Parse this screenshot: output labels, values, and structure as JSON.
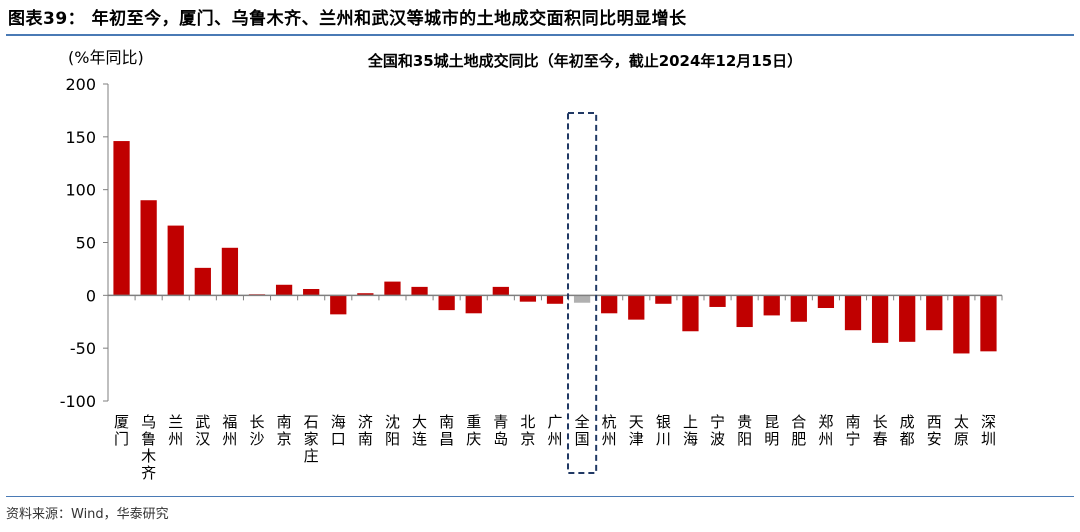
{
  "figure": {
    "title": "图表39：  年初至今，厦门、乌鲁木齐、兰州和武汉等城市的土地成交面积同比明显增长",
    "source": "资料来源：Wind，华泰研究"
  },
  "colors": {
    "bar": "#c00000",
    "highlight_bar": "#b0b0b0",
    "highlight_box": "#203864",
    "axis": "#7f7f7f",
    "rule": "#4a7ab5"
  },
  "chart_data": {
    "type": "bar",
    "title": "全国和35城土地成交同比（年初至今，截止2024年12月15日）",
    "ylabel": "(%年同比)",
    "xlabel": "",
    "ylim": [
      -100,
      200
    ],
    "yticks": [
      -100,
      -50,
      0,
      50,
      100,
      150,
      200
    ],
    "grid": false,
    "legend": "none",
    "highlight_category": "全国",
    "categories": [
      "厦门",
      "乌鲁木齐",
      "兰州",
      "武汉",
      "福州",
      "长沙",
      "南京",
      "石家庄",
      "海口",
      "济南",
      "沈阳",
      "大连",
      "南昌",
      "重庆",
      "青岛",
      "北京",
      "广州",
      "全国",
      "杭州",
      "天津",
      "银川",
      "上海",
      "宁波",
      "贵阳",
      "昆明",
      "合肥",
      "郑州",
      "南宁",
      "长春",
      "成都",
      "西安",
      "太原",
      "深圳"
    ],
    "values": [
      146,
      90,
      66,
      26,
      45,
      1,
      10,
      6,
      -18,
      2,
      13,
      8,
      -14,
      -17,
      8,
      -6,
      -8,
      -7,
      -17,
      -23,
      -8,
      -34,
      -11,
      -30,
      -19,
      -25,
      -12,
      -33,
      -45,
      -44,
      -33,
      -55,
      -53
    ]
  }
}
